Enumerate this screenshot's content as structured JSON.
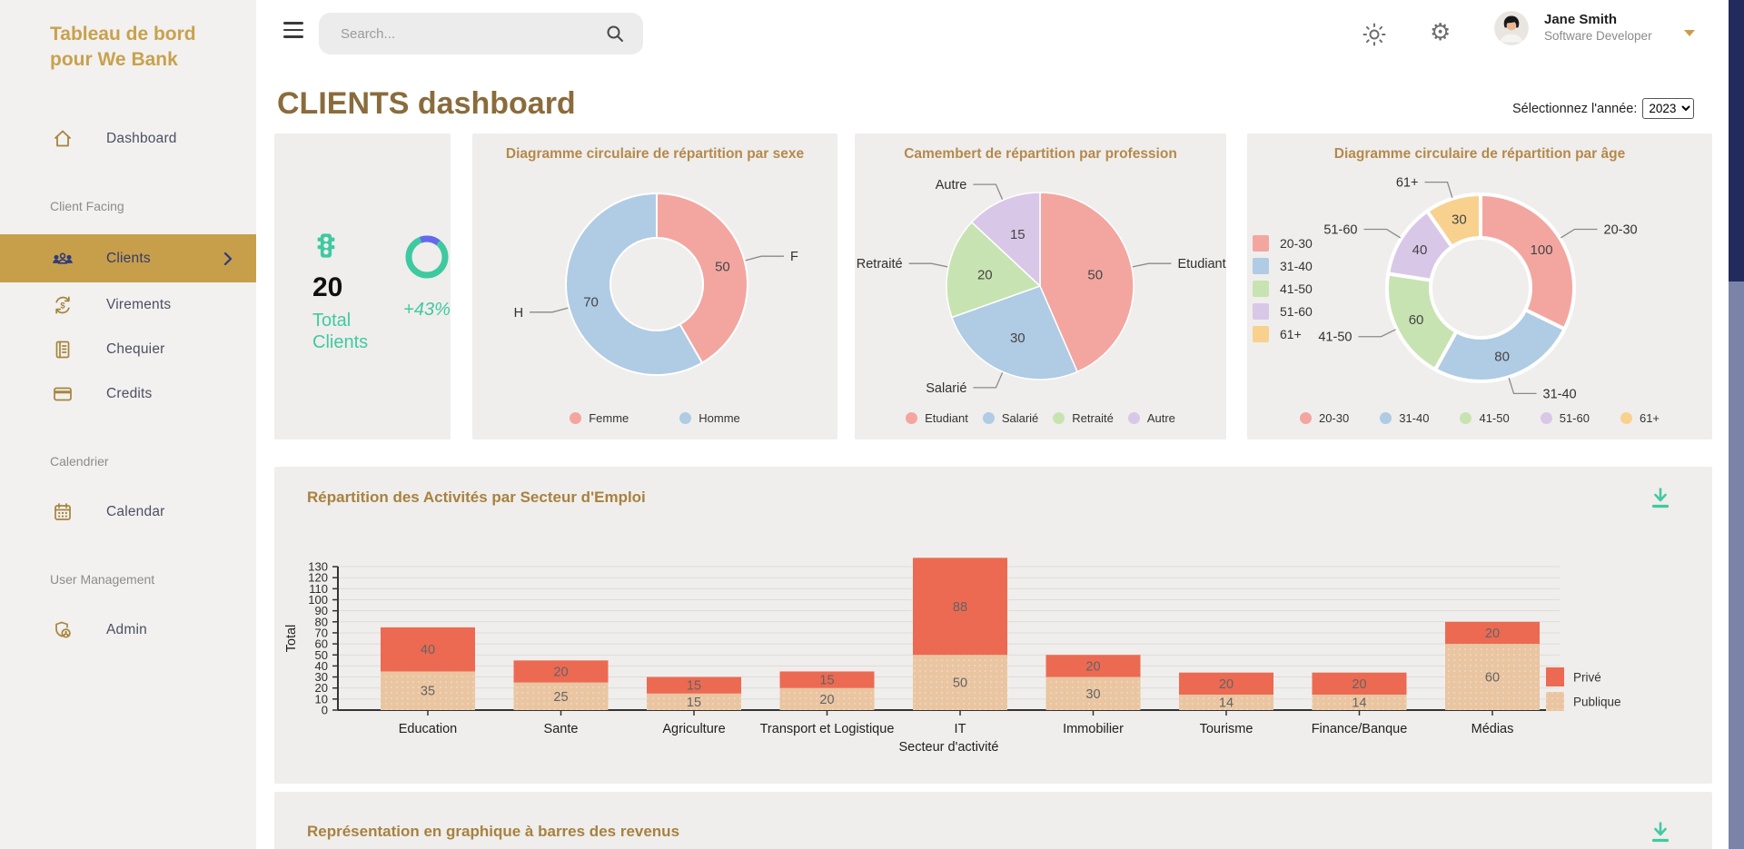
{
  "sidebar": {
    "title": "Tableau de bord pour We Bank",
    "groups": [
      {
        "items": [
          {
            "label": "Dashboard",
            "icon": "home-icon"
          }
        ]
      },
      {
        "section": "Client Facing",
        "items": [
          {
            "label": "Clients",
            "icon": "users-icon",
            "active": true
          },
          {
            "label": "Virements",
            "icon": "transfer-icon"
          },
          {
            "label": "Chequier",
            "icon": "checkbook-icon"
          },
          {
            "label": "Credits",
            "icon": "credit-card-icon"
          }
        ]
      },
      {
        "section": "Calendrier",
        "items": [
          {
            "label": "Calendar",
            "icon": "calendar-icon"
          }
        ]
      },
      {
        "section": "User Management",
        "items": [
          {
            "label": "Admin",
            "icon": "admin-shield-icon"
          }
        ]
      }
    ]
  },
  "header": {
    "search_placeholder": "Search...",
    "user": {
      "name": "Jane Smith",
      "role": "Software Developer"
    }
  },
  "page": {
    "title": "CLIENTS dashboard",
    "year_label": "Sélectionnez l'année:",
    "year_value": "2023"
  },
  "stat": {
    "value": "20",
    "label": "Total Clients",
    "delta": "+43%"
  },
  "revenue_section": {
    "title": "Représentation en graphique à barres des revenus"
  },
  "colors": {
    "gold": "#c79f4a",
    "heading": "#8a6c3c",
    "chart_title": "#b5894b",
    "teal": "#41c9a2",
    "ring_accent": "#6568ef",
    "navy_scrollbar": "#232b5c",
    "sidebar_bg": "#f2f1ef",
    "card_bg": "#efeeec"
  },
  "chart_data": [
    {
      "id": "sexe",
      "type": "donut",
      "title": "Diagramme circulaire de répartition par sexe",
      "labels": [
        "F",
        "H"
      ],
      "legend": [
        "Femme",
        "Homme"
      ],
      "values": [
        50,
        70
      ],
      "colors": [
        "#f3a6a0",
        "#b0cbe4"
      ],
      "legend_position": "bottom"
    },
    {
      "id": "profession",
      "type": "pie",
      "title": "Camembert de répartition par profession",
      "labels": [
        "Etudiant",
        "Salarié",
        "Retraité",
        "Autre"
      ],
      "legend": [
        "Etudiant",
        "Salarié",
        "Retraité",
        "Autre"
      ],
      "values": [
        50,
        30,
        20,
        15
      ],
      "colors": [
        "#f3a6a0",
        "#b0cbe4",
        "#c8e3b2",
        "#d9c7e8"
      ],
      "legend_position": "bottom"
    },
    {
      "id": "age",
      "type": "donut",
      "title": "Diagramme circulaire de répartition par âge",
      "labels": [
        "20-30",
        "31-40",
        "41-50",
        "51-60",
        "61+"
      ],
      "legend": [
        "20-30",
        "31-40",
        "41-50",
        "51-60",
        "61+"
      ],
      "values": [
        100,
        80,
        60,
        40,
        30
      ],
      "colors": [
        "#f3a6a0",
        "#b0cbe4",
        "#c8e3b2",
        "#d9c7e8",
        "#f9d18e"
      ],
      "legend_position": "bottom-and-left"
    },
    {
      "id": "secteurs",
      "type": "bar",
      "title": "Répartition des Activités par Secteur d'Emploi",
      "categories": [
        "Education",
        "Sante",
        "Agriculture",
        "Transport et Logistique",
        "IT",
        "Immobilier",
        "Tourisme",
        "Finance/Banque",
        "Médias"
      ],
      "series": [
        {
          "name": "Publique",
          "color": "#eac5a1",
          "values": [
            35,
            25,
            15,
            20,
            50,
            30,
            14,
            14,
            60
          ]
        },
        {
          "name": "Privé",
          "color": "#ec6a52",
          "values": [
            40,
            20,
            15,
            15,
            88,
            20,
            20,
            20,
            20
          ]
        }
      ],
      "stacked": true,
      "xlabel": "Secteur d'activité",
      "ylabel": "Total",
      "ylim": [
        0,
        130
      ],
      "ytick_step": 10,
      "grid": true,
      "legend_position": "right",
      "legend_order": [
        "Privé",
        "Publique"
      ]
    }
  ]
}
